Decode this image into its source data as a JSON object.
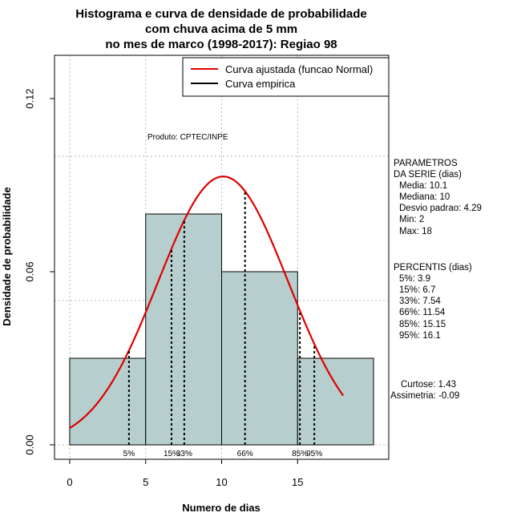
{
  "chart_data": {
    "type": "histogram",
    "title": [
      "Histograma e curva de densidade de probabilidade",
      "com chuva acima de 5 mm",
      "no mes de marco (1998-2017): Regiao 98"
    ],
    "xlabel": "Numero de dias",
    "ylabel": "Densidade de probabilidade",
    "xlim": [
      -1,
      21
    ],
    "ylim": [
      -0.005,
      0.135
    ],
    "xticks": [
      0,
      5,
      10,
      15
    ],
    "yticks": [
      0.0,
      0.06,
      0.12
    ],
    "ytick_labels": [
      "0.00",
      "0.06",
      "0.12"
    ],
    "grid": true,
    "bins": [
      {
        "x0": 0,
        "x1": 5,
        "density": 0.03
      },
      {
        "x0": 5,
        "x1": 10,
        "density": 0.08
      },
      {
        "x0": 10,
        "x1": 15,
        "density": 0.06
      },
      {
        "x0": 15,
        "x1": 20,
        "density": 0.03
      }
    ],
    "normal_fit": {
      "name": "Curva ajustada (funcao Normal)",
      "mean": 10.1,
      "sd": 4.29,
      "x_range": [
        0,
        18
      ],
      "color": "#dd0000"
    },
    "empirical_name": "Curva empirica",
    "bar_color": "#b7cece",
    "percentile_lines": [
      {
        "label": "5%",
        "x": 3.9
      },
      {
        "label": "15%",
        "x": 6.7
      },
      {
        "label": "33%",
        "x": 7.54
      },
      {
        "label": "66%",
        "x": 11.54
      },
      {
        "label": "85%",
        "x": 15.15
      },
      {
        "label": "95%",
        "x": 16.1
      }
    ],
    "legend_position": "top-right",
    "product_label": "Produto: CPTEC/INPE"
  },
  "side_panel": {
    "params_header": [
      "PARAMETROS",
      "DA SERIE (dias)"
    ],
    "params": [
      "Media: 10.1",
      "Mediana: 10",
      "Desvio padrao: 4.29",
      "Min: 2",
      "Max: 18"
    ],
    "percentis_header": "PERCENTIS (dias)",
    "percentis": [
      "5%: 3.9",
      "15%: 6.7",
      "33%: 7.54",
      "66%: 11.54",
      "85%: 15.15",
      "95%: 16.1"
    ],
    "curtose": "Curtose: 1.43",
    "assimetria": "Assimetria: -0.09"
  }
}
